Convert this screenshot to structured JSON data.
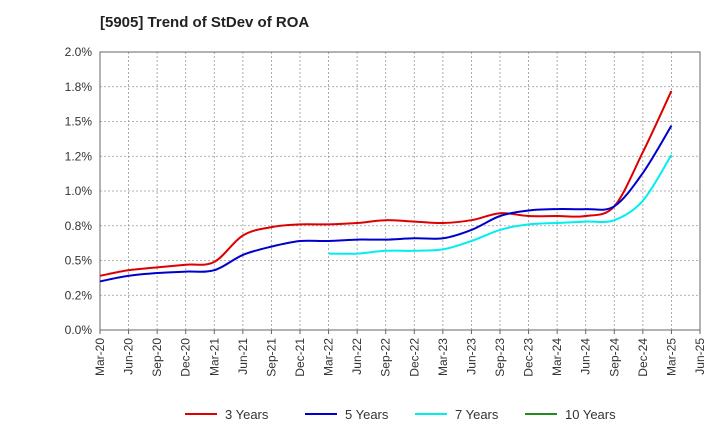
{
  "chart_data": {
    "type": "line",
    "title": "[5905]  Trend of StDev of ROA",
    "xlabel": "",
    "ylabel": "",
    "x": [
      "Mar-20",
      "Jun-20",
      "Sep-20",
      "Dec-20",
      "Mar-21",
      "Jun-21",
      "Sep-21",
      "Dec-21",
      "Mar-22",
      "Jun-22",
      "Sep-22",
      "Dec-22",
      "Mar-23",
      "Jun-23",
      "Sep-23",
      "Dec-23",
      "Mar-24",
      "Jun-24",
      "Sep-24",
      "Dec-24",
      "Mar-25",
      "Jun-25"
    ],
    "ylim": [
      0,
      2.0
    ],
    "yticks": [
      "0.0%",
      "0.2%",
      "0.5%",
      "0.8%",
      "1.0%",
      "1.2%",
      "1.5%",
      "1.8%",
      "2.0%"
    ],
    "grid": true,
    "legend_position": "bottom",
    "series": [
      {
        "name": "3 Years",
        "color": "#dd0000",
        "values": [
          0.39,
          0.43,
          0.45,
          0.47,
          0.49,
          0.68,
          0.74,
          0.76,
          0.76,
          0.77,
          0.79,
          0.78,
          0.77,
          0.79,
          0.84,
          0.82,
          0.82,
          0.82,
          0.89,
          1.28,
          1.72,
          null
        ]
      },
      {
        "name": "5 Years",
        "color": "#0000cc",
        "values": [
          0.35,
          0.39,
          0.41,
          0.42,
          0.43,
          0.54,
          0.6,
          0.64,
          0.64,
          0.65,
          0.65,
          0.66,
          0.66,
          0.72,
          0.82,
          0.86,
          0.87,
          0.87,
          0.89,
          1.13,
          1.47,
          null
        ]
      },
      {
        "name": "7 Years",
        "color": "#00eeee",
        "values": [
          null,
          null,
          null,
          null,
          null,
          null,
          null,
          null,
          0.55,
          0.55,
          0.57,
          0.57,
          0.58,
          0.64,
          0.72,
          0.76,
          0.77,
          0.78,
          0.79,
          0.93,
          1.26,
          null
        ]
      },
      {
        "name": "10 Years",
        "color": "#228B22",
        "values": [
          null,
          null,
          null,
          null,
          null,
          null,
          null,
          null,
          null,
          null,
          null,
          null,
          null,
          null,
          null,
          null,
          null,
          null,
          null,
          null,
          null,
          null
        ]
      }
    ]
  }
}
